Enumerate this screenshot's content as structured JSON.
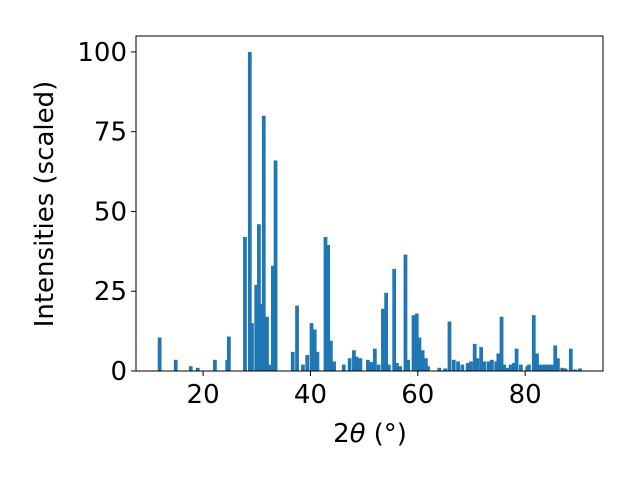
{
  "chart_data": {
    "type": "bar",
    "xlabel": "2θ (°)",
    "xlabel_parts": {
      "main": "2",
      "symbol": "θ",
      "unit": "(°)"
    },
    "ylabel": "Intensities (scaled)",
    "xlim": [
      7.5,
      94.5
    ],
    "ylim": [
      0,
      105
    ],
    "xticks": [
      20,
      40,
      60,
      80
    ],
    "yticks": [
      0,
      25,
      50,
      75,
      100
    ],
    "grid": false,
    "bar_color": "#1f77b4",
    "bar_width": 0.7,
    "x": [
      11.9,
      14.9,
      17.7,
      19.0,
      22.2,
      24.5,
      24.8,
      27.8,
      28.7,
      29.1,
      29.9,
      30.4,
      30.8,
      31.3,
      31.9,
      32.5,
      33.0,
      33.5,
      36.7,
      37.5,
      38.6,
      39.4,
      40.2,
      40.8,
      41.3,
      42.8,
      43.3,
      43.8,
      44.4,
      46.2,
      47.3,
      48.1,
      48.6,
      49.3,
      50.7,
      51.3,
      52.0,
      52.7,
      53.5,
      54.1,
      54.6,
      55.6,
      56.1,
      56.7,
      57.7,
      58.2,
      59.2,
      59.8,
      60.3,
      60.9,
      61.5,
      61.9,
      64.0,
      65.1,
      65.9,
      66.7,
      67.5,
      68.3,
      69.3,
      69.9,
      70.6,
      71.1,
      71.8,
      72.4,
      73.2,
      73.8,
      74.6,
      75.0,
      75.6,
      76.1,
      76.6,
      77.3,
      77.9,
      78.4,
      79.2,
      80.4,
      80.7,
      81.6,
      82.2,
      82.8,
      83.3,
      83.9,
      84.4,
      84.9,
      85.6,
      86.1,
      86.9,
      87.5,
      88.5,
      89.3,
      90.2
    ],
    "values": [
      10.5,
      3.5,
      1.5,
      1.0,
      3.5,
      3.5,
      10.8,
      42.0,
      100.0,
      15.0,
      27.0,
      46.0,
      21.0,
      80.0,
      17.0,
      2.0,
      33.0,
      66.0,
      6.0,
      20.5,
      2.0,
      5.0,
      15.0,
      13.0,
      6.0,
      42.0,
      39.5,
      9.5,
      3.0,
      2.0,
      4.0,
      6.5,
      4.5,
      4.0,
      3.5,
      2.8,
      7.0,
      2.0,
      19.5,
      24.5,
      2.0,
      32.0,
      2.5,
      1.5,
      36.5,
      3.5,
      17.5,
      18.0,
      10.5,
      6.5,
      4.0,
      1.5,
      1.0,
      0.8,
      15.5,
      3.5,
      3.0,
      2.0,
      2.5,
      3.0,
      8.5,
      4.0,
      7.5,
      3.0,
      3.0,
      3.5,
      3.0,
      5.5,
      17.0,
      2.0,
      1.0,
      2.0,
      2.5,
      7.0,
      2.0,
      1.5,
      2.0,
      17.5,
      5.5,
      2.0,
      2.0,
      2.0,
      2.0,
      2.0,
      8.0,
      4.0,
      1.0,
      0.8,
      7.0,
      0.5,
      0.8
    ]
  }
}
